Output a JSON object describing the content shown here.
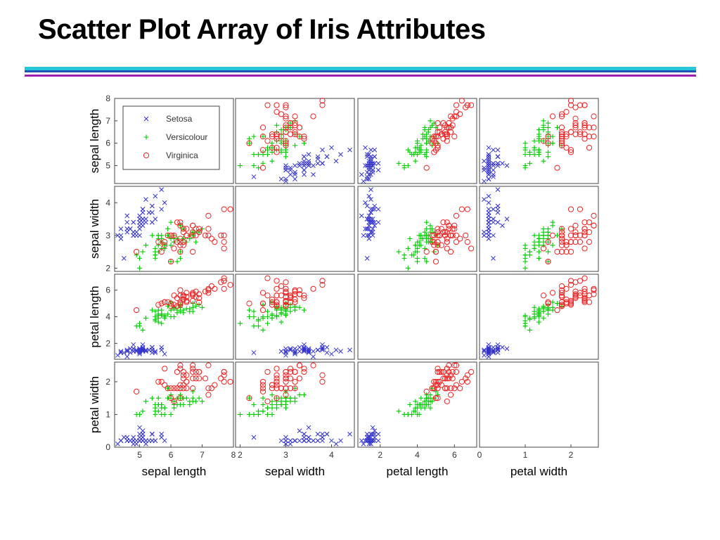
{
  "slide": {
    "title": "Scatter Plot Array of Iris Attributes"
  },
  "chart_data": {
    "type": "scatter",
    "variables": [
      "sepal length",
      "sepal width",
      "petal length",
      "petal width"
    ],
    "ranges": [
      [
        4.2,
        8.0
      ],
      [
        1.9,
        4.5
      ],
      [
        0.8,
        7.2
      ],
      [
        0.0,
        2.6
      ]
    ],
    "ticks": [
      [
        5,
        6,
        7,
        8
      ],
      [
        2,
        3,
        4
      ],
      [
        2,
        4,
        6
      ],
      [
        0,
        1,
        2
      ]
    ],
    "diagonal": "empty",
    "legend": {
      "position": "top-left panel"
    },
    "colors": {
      "Setosa": "#3333cc",
      "Versicolour": "#00cc00",
      "Virginica": "#ee2222"
    },
    "series": [
      {
        "name": "Setosa",
        "marker": "x",
        "points": [
          [
            5.1,
            3.5,
            1.4,
            0.2
          ],
          [
            4.9,
            3.0,
            1.4,
            0.2
          ],
          [
            4.7,
            3.2,
            1.3,
            0.2
          ],
          [
            4.6,
            3.1,
            1.5,
            0.2
          ],
          [
            5.0,
            3.6,
            1.4,
            0.2
          ],
          [
            5.4,
            3.9,
            1.7,
            0.4
          ],
          [
            4.6,
            3.4,
            1.4,
            0.3
          ],
          [
            5.0,
            3.4,
            1.5,
            0.2
          ],
          [
            4.4,
            2.9,
            1.4,
            0.2
          ],
          [
            4.9,
            3.1,
            1.5,
            0.1
          ],
          [
            5.4,
            3.7,
            1.5,
            0.2
          ],
          [
            4.8,
            3.4,
            1.6,
            0.2
          ],
          [
            4.8,
            3.0,
            1.4,
            0.1
          ],
          [
            4.3,
            3.0,
            1.1,
            0.1
          ],
          [
            5.8,
            4.0,
            1.2,
            0.2
          ],
          [
            5.7,
            4.4,
            1.5,
            0.4
          ],
          [
            5.4,
            3.9,
            1.3,
            0.4
          ],
          [
            5.1,
            3.5,
            1.4,
            0.3
          ],
          [
            5.7,
            3.8,
            1.7,
            0.3
          ],
          [
            5.1,
            3.8,
            1.5,
            0.3
          ],
          [
            5.4,
            3.4,
            1.7,
            0.2
          ],
          [
            5.1,
            3.7,
            1.5,
            0.4
          ],
          [
            4.6,
            3.6,
            1.0,
            0.2
          ],
          [
            5.1,
            3.3,
            1.7,
            0.5
          ],
          [
            4.8,
            3.4,
            1.9,
            0.2
          ],
          [
            5.0,
            3.0,
            1.6,
            0.2
          ],
          [
            5.0,
            3.4,
            1.6,
            0.4
          ],
          [
            5.2,
            3.5,
            1.5,
            0.2
          ],
          [
            5.2,
            3.4,
            1.4,
            0.2
          ],
          [
            4.7,
            3.2,
            1.6,
            0.2
          ],
          [
            4.8,
            3.1,
            1.6,
            0.2
          ],
          [
            5.4,
            3.4,
            1.5,
            0.4
          ],
          [
            5.2,
            4.1,
            1.5,
            0.1
          ],
          [
            5.5,
            4.2,
            1.4,
            0.2
          ],
          [
            5.0,
            3.2,
            1.2,
            0.2
          ],
          [
            5.5,
            3.5,
            1.3,
            0.2
          ],
          [
            4.4,
            3.0,
            1.3,
            0.2
          ],
          [
            5.1,
            3.4,
            1.5,
            0.2
          ],
          [
            5.0,
            3.5,
            1.3,
            0.3
          ],
          [
            4.5,
            2.3,
            1.3,
            0.3
          ],
          [
            4.4,
            3.2,
            1.3,
            0.2
          ],
          [
            5.0,
            3.5,
            1.6,
            0.6
          ],
          [
            5.1,
            3.8,
            1.9,
            0.4
          ],
          [
            4.8,
            3.0,
            1.4,
            0.3
          ],
          [
            5.1,
            3.8,
            1.6,
            0.2
          ],
          [
            4.6,
            3.2,
            1.4,
            0.2
          ],
          [
            5.3,
            3.7,
            1.5,
            0.2
          ],
          [
            5.0,
            3.3,
            1.4,
            0.2
          ]
        ]
      },
      {
        "name": "Versicolour",
        "marker": "+",
        "points": [
          [
            7.0,
            3.2,
            4.7,
            1.4
          ],
          [
            6.4,
            3.2,
            4.5,
            1.5
          ],
          [
            6.9,
            3.1,
            4.9,
            1.5
          ],
          [
            5.5,
            2.3,
            4.0,
            1.3
          ],
          [
            6.5,
            2.8,
            4.6,
            1.5
          ],
          [
            5.7,
            2.8,
            4.5,
            1.3
          ],
          [
            6.3,
            3.3,
            4.7,
            1.6
          ],
          [
            4.9,
            2.4,
            3.3,
            1.0
          ],
          [
            6.6,
            2.9,
            4.6,
            1.3
          ],
          [
            5.2,
            2.7,
            3.9,
            1.4
          ],
          [
            5.0,
            2.0,
            3.5,
            1.0
          ],
          [
            5.9,
            3.0,
            4.2,
            1.5
          ],
          [
            6.0,
            2.2,
            4.0,
            1.0
          ],
          [
            6.1,
            2.9,
            4.7,
            1.4
          ],
          [
            5.6,
            2.9,
            3.6,
            1.3
          ],
          [
            6.7,
            3.1,
            4.4,
            1.4
          ],
          [
            5.6,
            3.0,
            4.5,
            1.5
          ],
          [
            5.8,
            2.7,
            4.1,
            1.0
          ],
          [
            6.2,
            2.2,
            4.5,
            1.5
          ],
          [
            5.6,
            2.5,
            3.9,
            1.1
          ],
          [
            5.9,
            3.2,
            4.8,
            1.8
          ],
          [
            6.1,
            2.8,
            4.0,
            1.3
          ],
          [
            6.3,
            2.5,
            4.9,
            1.5
          ],
          [
            6.1,
            2.8,
            4.7,
            1.2
          ],
          [
            6.4,
            2.9,
            4.3,
            1.3
          ],
          [
            6.6,
            3.0,
            4.4,
            1.4
          ],
          [
            6.8,
            2.8,
            4.8,
            1.4
          ],
          [
            6.7,
            3.0,
            5.0,
            1.7
          ],
          [
            6.0,
            2.9,
            4.5,
            1.5
          ],
          [
            5.7,
            2.6,
            3.5,
            1.0
          ],
          [
            5.5,
            2.4,
            3.8,
            1.1
          ],
          [
            5.5,
            2.4,
            3.7,
            1.0
          ],
          [
            5.8,
            2.7,
            3.9,
            1.2
          ],
          [
            6.0,
            2.7,
            5.1,
            1.6
          ],
          [
            5.4,
            3.0,
            4.5,
            1.5
          ],
          [
            6.0,
            3.4,
            4.5,
            1.6
          ],
          [
            6.7,
            3.1,
            4.7,
            1.5
          ],
          [
            6.3,
            2.3,
            4.4,
            1.3
          ],
          [
            5.6,
            3.0,
            4.1,
            1.3
          ],
          [
            5.5,
            2.5,
            4.0,
            1.3
          ],
          [
            5.5,
            2.6,
            4.4,
            1.2
          ],
          [
            6.1,
            3.0,
            4.6,
            1.4
          ],
          [
            5.8,
            2.6,
            4.0,
            1.2
          ],
          [
            5.0,
            2.3,
            3.3,
            1.0
          ],
          [
            5.6,
            2.7,
            4.2,
            1.3
          ],
          [
            5.7,
            3.0,
            4.2,
            1.2
          ],
          [
            5.7,
            2.9,
            4.2,
            1.3
          ],
          [
            6.2,
            2.9,
            4.3,
            1.3
          ],
          [
            5.1,
            2.5,
            3.0,
            1.1
          ],
          [
            5.7,
            2.8,
            4.1,
            1.3
          ]
        ]
      },
      {
        "name": "Virginica",
        "marker": "o",
        "points": [
          [
            6.3,
            3.3,
            6.0,
            2.5
          ],
          [
            5.8,
            2.7,
            5.1,
            1.9
          ],
          [
            7.1,
            3.0,
            5.9,
            2.1
          ],
          [
            6.3,
            2.9,
            5.6,
            1.8
          ],
          [
            6.5,
            3.0,
            5.8,
            2.2
          ],
          [
            7.6,
            3.0,
            6.6,
            2.1
          ],
          [
            4.9,
            2.5,
            4.5,
            1.7
          ],
          [
            7.3,
            2.9,
            6.3,
            1.8
          ],
          [
            6.7,
            2.5,
            5.8,
            1.8
          ],
          [
            7.2,
            3.6,
            6.1,
            2.5
          ],
          [
            6.5,
            3.2,
            5.1,
            2.0
          ],
          [
            6.4,
            2.7,
            5.3,
            1.9
          ],
          [
            6.8,
            3.0,
            5.5,
            2.1
          ],
          [
            5.7,
            2.5,
            5.0,
            2.0
          ],
          [
            5.8,
            2.8,
            5.1,
            2.4
          ],
          [
            6.4,
            3.2,
            5.3,
            2.3
          ],
          [
            6.5,
            3.0,
            5.5,
            1.8
          ],
          [
            7.7,
            3.8,
            6.7,
            2.2
          ],
          [
            7.7,
            2.6,
            6.9,
            2.3
          ],
          [
            6.0,
            2.2,
            5.0,
            1.5
          ],
          [
            6.9,
            3.2,
            5.7,
            2.3
          ],
          [
            5.6,
            2.8,
            4.9,
            2.0
          ],
          [
            7.7,
            2.8,
            6.7,
            2.0
          ],
          [
            6.3,
            2.7,
            4.9,
            1.8
          ],
          [
            6.7,
            3.3,
            5.7,
            2.1
          ],
          [
            7.2,
            3.2,
            6.0,
            1.8
          ],
          [
            6.2,
            2.8,
            4.8,
            1.8
          ],
          [
            6.1,
            3.0,
            4.9,
            1.8
          ],
          [
            6.4,
            2.8,
            5.6,
            2.1
          ],
          [
            7.2,
            3.0,
            5.8,
            1.6
          ],
          [
            7.4,
            2.8,
            6.1,
            1.9
          ],
          [
            7.9,
            3.8,
            6.4,
            2.0
          ],
          [
            6.4,
            2.8,
            5.6,
            2.2
          ],
          [
            6.3,
            2.8,
            5.1,
            1.5
          ],
          [
            6.1,
            2.6,
            5.6,
            1.4
          ],
          [
            7.7,
            3.0,
            6.1,
            2.3
          ],
          [
            6.3,
            3.4,
            5.6,
            2.4
          ],
          [
            6.4,
            3.1,
            5.5,
            1.8
          ],
          [
            6.0,
            3.0,
            4.8,
            1.8
          ],
          [
            6.9,
            3.1,
            5.4,
            2.1
          ],
          [
            6.7,
            3.1,
            5.6,
            2.4
          ],
          [
            6.9,
            3.1,
            5.1,
            2.3
          ],
          [
            6.8,
            3.2,
            5.9,
            2.3
          ],
          [
            6.7,
            3.3,
            5.7,
            2.5
          ],
          [
            6.7,
            3.0,
            5.2,
            2.3
          ],
          [
            6.3,
            2.5,
            5.0,
            1.9
          ],
          [
            6.5,
            3.0,
            5.2,
            2.0
          ],
          [
            6.2,
            3.4,
            5.4,
            2.3
          ],
          [
            5.9,
            3.0,
            5.1,
            1.8
          ]
        ]
      }
    ]
  }
}
